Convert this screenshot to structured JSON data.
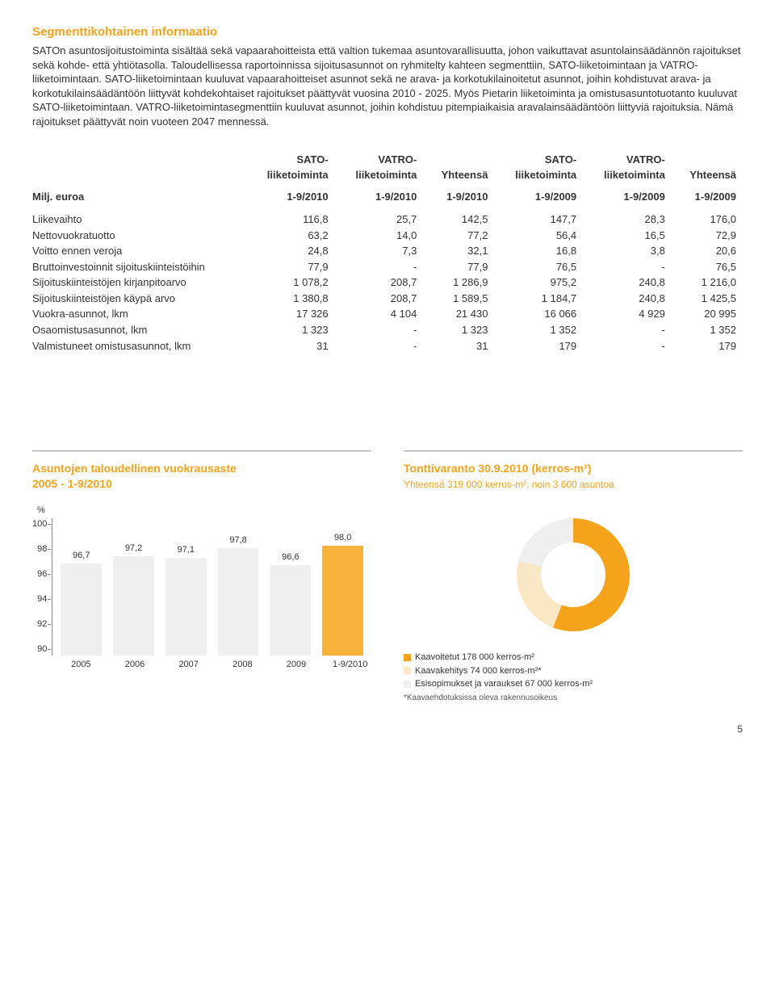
{
  "heading": "Segmenttikohtainen informaatio",
  "body_text": "SATOn asuntosijoitustoiminta sisältää sekä vapaarahoitteista että valtion tukemaa asuntovarallisuutta, johon vaikuttavat asuntolainsäädännön rajoitukset sekä kohde- että yhtiötasolla. Taloudellisessa raportoinnissa sijoitusasunnot on ryhmitelty kahteen segmenttiin, SATO-liiketoimintaan ja VATRO-liiketoimintaan. SATO-liiketoimintaan kuuluvat vapaarahoitteiset asunnot sekä ne arava- ja korkotukilainoitetut asunnot, joihin kohdistuvat arava- ja korkotukilainsäädäntöön liittyvät kohdekohtaiset rajoitukset päättyvät vuosina 2010 - 2025. Myös Pietarin liiketoiminta ja omistusasuntotuotanto kuuluvat SATO-liiketoimintaan. VATRO-liiketoimintasegmenttiin kuuluvat asunnot, joihin kohdistuu pitempiaikaisia aravalainsäädäntöön liittyviä rajoituksia. Nämä rajoitukset päättyvät noin vuoteen 2047 mennessä.",
  "table": {
    "col_group_labels": [
      {
        "top": "SATO-",
        "bottom": "liiketoiminta"
      },
      {
        "top": "VATRO-",
        "bottom": "liiketoiminta"
      },
      {
        "top": "",
        "bottom": "Yhteensä"
      },
      {
        "top": "SATO-",
        "bottom": "liiketoiminta"
      },
      {
        "top": "VATRO-",
        "bottom": "liiketoiminta"
      },
      {
        "top": "",
        "bottom": "Yhteensä"
      }
    ],
    "period_label": "Milj. euroa",
    "periods": [
      "1-9/2010",
      "1-9/2010",
      "1-9/2010",
      "1-9/2009",
      "1-9/2009",
      "1-9/2009"
    ],
    "rows": [
      {
        "label": "Liikevaihto",
        "v": [
          "116,8",
          "25,7",
          "142,5",
          "147,7",
          "28,3",
          "176,0"
        ]
      },
      {
        "label": "Nettovuokratuotto",
        "v": [
          "63,2",
          "14,0",
          "77,2",
          "56,4",
          "16,5",
          "72,9"
        ]
      },
      {
        "label": "Voitto ennen veroja",
        "v": [
          "24,8",
          "7,3",
          "32,1",
          "16,8",
          "3,8",
          "20,6"
        ]
      },
      {
        "label": "Bruttoinvestoinnit sijoituskiinteistöihin",
        "v": [
          "77,9",
          "-",
          "77,9",
          "76,5",
          "-",
          "76,5"
        ]
      },
      {
        "label": "Sijoituskiinteistöjen kirjanpitoarvo",
        "v": [
          "1 078,2",
          "208,7",
          "1 286,9",
          "975,2",
          "240,8",
          "1 216,0"
        ]
      },
      {
        "label": "Sijoituskiinteistöjen käypä arvo",
        "v": [
          "1 380,8",
          "208,7",
          "1 589,5",
          "1 184,7",
          "240,8",
          "1 425,5"
        ]
      },
      {
        "label": "Vuokra-asunnot, lkm",
        "v": [
          "17 326",
          "4 104",
          "21 430",
          "16 066",
          "4 929",
          "20 995"
        ]
      },
      {
        "label": "Osaomistusasunnot, lkm",
        "v": [
          "1 323",
          "-",
          "1 323",
          "1 352",
          "-",
          "1 352"
        ]
      },
      {
        "label": "Valmistuneet omistusasunnot, lkm",
        "v": [
          "31",
          "-",
          "31",
          "179",
          "-",
          "179"
        ]
      }
    ]
  },
  "bar_chart": {
    "title": "Asuntojen taloudellinen vuokrausaste",
    "subtitle": "2005 - 1-9/2010",
    "unit": "%",
    "ylim": [
      90,
      100
    ],
    "yticks": [
      100,
      98,
      96,
      94,
      92,
      90
    ],
    "categories": [
      "2005",
      "2006",
      "2007",
      "2008",
      "2009",
      "1-9/2010"
    ],
    "values": [
      96.7,
      97.2,
      97.1,
      97.8,
      96.6,
      98.0
    ],
    "value_labels": [
      "96,7",
      "97,2",
      "97,1",
      "97,8",
      "96,6",
      "98,0"
    ],
    "bar_colors": [
      "#efefef",
      "#efefef",
      "#efefef",
      "#efefef",
      "#efefef",
      "#f7b23c"
    ],
    "bar_width": 0.8
  },
  "donut_chart": {
    "title": "Tonttivaranto 30.9.2010 (kerros-m²)",
    "subtitle": "Yhteensä 319 000 kerros-m², noin 3 600 asuntoa",
    "total": 319000,
    "slices": [
      {
        "label": "Kaavoitetut 178 000 kerros-m²",
        "value": 178000,
        "color": "#f4a31b"
      },
      {
        "label": "Kaavakehitys 74 000 kerros-m²*",
        "value": 74000,
        "color": "#f9e7c6"
      },
      {
        "label": "Esisopimukset ja varaukset 67 000 kerros-m²",
        "value": 67000,
        "color": "#efefef"
      }
    ],
    "footnote": "*Kaavaehdotuksissa oleva rakennusoikeus",
    "outer_r": 70,
    "inner_r": 40
  },
  "page_number": "5"
}
